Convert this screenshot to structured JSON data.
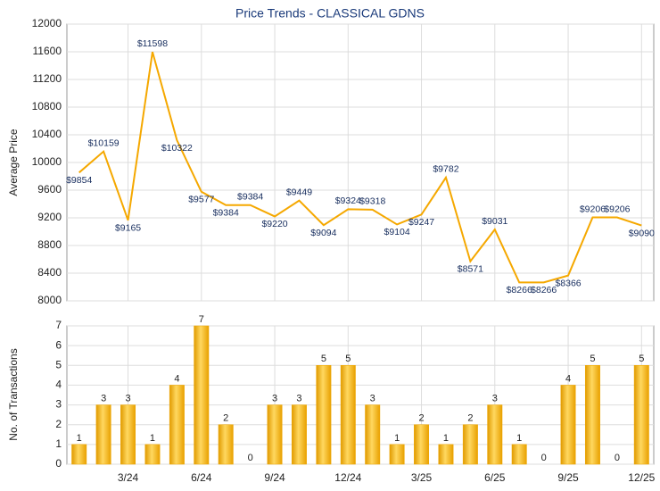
{
  "chart_data": [
    {
      "type": "line",
      "title": "Price Trends - CLASSICAL GDNS",
      "y_label": "Average Price",
      "color": "#f5a800",
      "values": [
        9854,
        10159,
        9165,
        11598,
        10322,
        9577,
        9384,
        9384,
        9220,
        9449,
        9094,
        9324,
        9318,
        9104,
        9247,
        9782,
        8571,
        9031,
        8266,
        8266,
        8366,
        9206,
        9206,
        9090
      ],
      "value_labels": [
        "$9854",
        "$10159",
        "$9165",
        "$11598",
        "$10322",
        "$9577",
        "$9384",
        "$9384",
        "$9220",
        "$9449",
        "$9094",
        "$9324",
        "$9318",
        "$9104",
        "$9247",
        "$9782",
        "$8571",
        "$9031",
        "$8266",
        "$8266",
        "$8366",
        "$9206",
        "$9206",
        "$9090"
      ],
      "ylim": [
        8000,
        12000
      ],
      "yticks": [
        8000,
        8400,
        8800,
        9200,
        9600,
        10000,
        10400,
        10800,
        11200,
        11600,
        12000
      ],
      "grid": true
    },
    {
      "type": "bar",
      "y_label": "No. of Transactions",
      "color": "#f0a800",
      "categories": [
        null,
        null,
        "3/24",
        null,
        null,
        "6/24",
        null,
        null,
        "9/24",
        null,
        null,
        "12/24",
        null,
        null,
        "3/25",
        null,
        null,
        "6/25",
        null,
        null,
        "9/25",
        null,
        null,
        "12/25"
      ],
      "values": [
        1,
        3,
        3,
        1,
        4,
        7,
        2,
        0,
        3,
        3,
        5,
        5,
        3,
        1,
        2,
        1,
        2,
        3,
        1,
        0,
        4,
        5,
        0,
        5
      ],
      "ylim": [
        0,
        7
      ],
      "yticks": [
        0,
        1,
        2,
        3,
        4,
        5,
        6,
        7
      ],
      "grid": true
    }
  ]
}
